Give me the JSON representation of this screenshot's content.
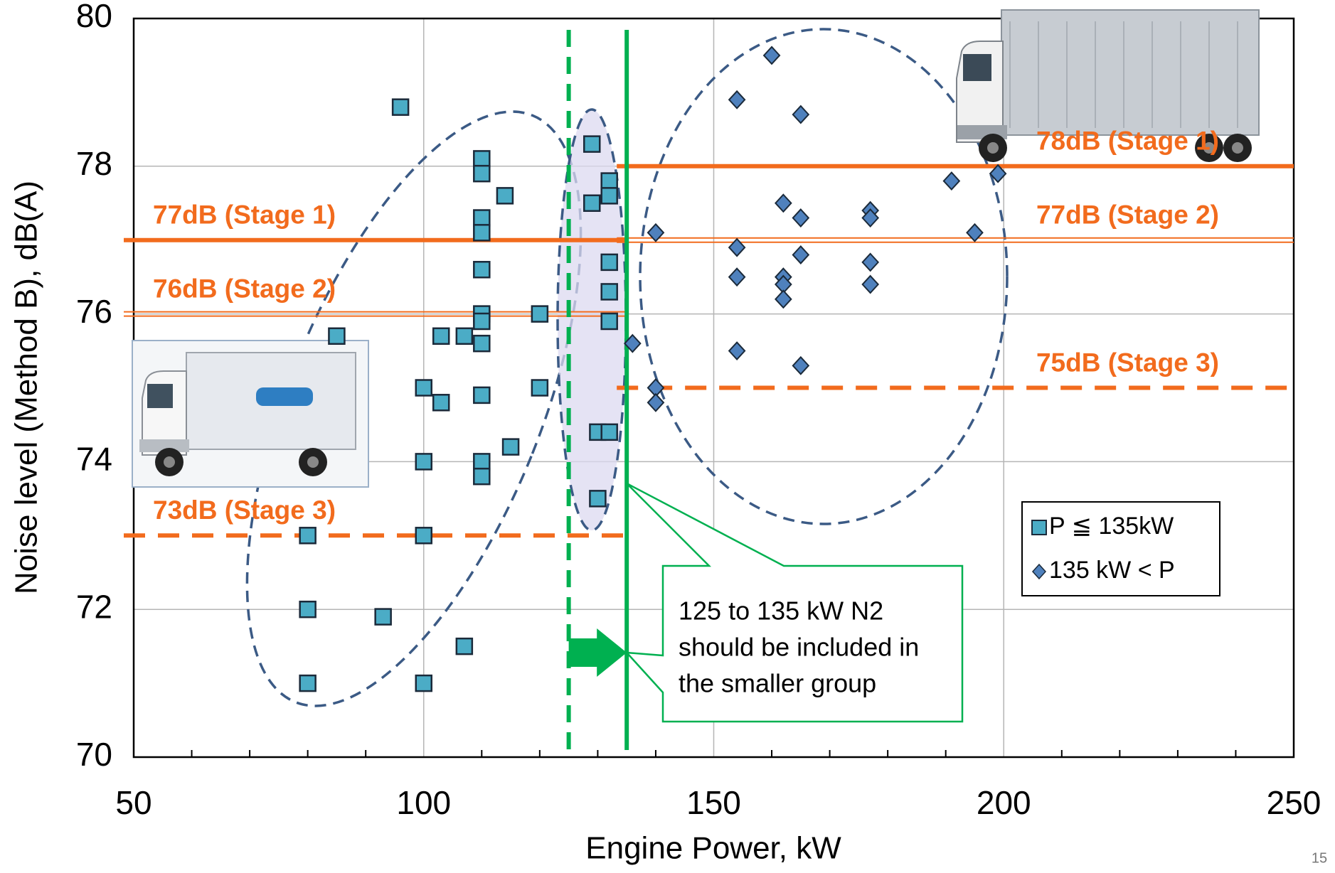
{
  "chart_data": {
    "type": "scatter",
    "x_label": "Engine Power, kW",
    "y_label": "Noise level (Method B), dB(A)",
    "xlim": [
      50,
      250
    ],
    "ylim": [
      70,
      80
    ],
    "xticks": [
      50,
      100,
      150,
      200,
      250
    ],
    "xminorticks": [
      60,
      70,
      80,
      90,
      110,
      120,
      130,
      140,
      160,
      170,
      180,
      190,
      210,
      220,
      230,
      240
    ],
    "yticks": [
      70,
      72,
      74,
      76,
      78,
      80
    ],
    "grid": true,
    "legend": "lower right",
    "series": [
      {
        "name": "P ≦ 135kW",
        "marker": "square",
        "color": "#4bacc6",
        "x": [
          80,
          80,
          80,
          85,
          93,
          96,
          100,
          100,
          100,
          100,
          103,
          103,
          107,
          107,
          110,
          110,
          110,
          110,
          110,
          110,
          110,
          110,
          110,
          110,
          110,
          114,
          115,
          120,
          120,
          129,
          129,
          130,
          130,
          132,
          132,
          132,
          132,
          132,
          132
        ],
        "values": [
          73.0,
          72.0,
          71.0,
          75.7,
          71.9,
          78.8,
          75.0,
          74.0,
          73.0,
          71.0,
          74.8,
          75.7,
          75.7,
          71.5,
          78.1,
          77.9,
          77.3,
          77.1,
          76.6,
          76.0,
          75.9,
          75.6,
          74.9,
          74.0,
          73.8,
          77.6,
          74.2,
          76.0,
          75.0,
          78.3,
          77.5,
          74.4,
          73.5,
          77.8,
          77.6,
          76.7,
          76.3,
          75.9,
          74.4
        ]
      },
      {
        "name": "135 kW < P",
        "marker": "diamond",
        "color": "#4f81bd",
        "x": [
          136,
          140,
          140,
          140,
          154,
          154,
          154,
          154,
          160,
          162,
          162,
          162,
          162,
          165,
          165,
          165,
          165,
          177,
          177,
          177,
          177,
          191,
          195,
          199
        ],
        "values": [
          75.6,
          77.1,
          75.0,
          74.8,
          78.9,
          76.9,
          76.5,
          75.5,
          79.5,
          77.5,
          76.5,
          76.4,
          76.2,
          78.7,
          77.3,
          76.8,
          75.3,
          77.4,
          77.3,
          76.7,
          76.4,
          77.8,
          77.1,
          77.9
        ]
      }
    ],
    "threshold_color": "#f26b1d",
    "thresholds": [
      {
        "label": "77dB (Stage 1)",
        "value": 77,
        "x_range": [
          50,
          135
        ],
        "style": "solid"
      },
      {
        "label": "76dB (Stage 2)",
        "value": 76,
        "x_range": [
          50,
          135
        ],
        "style": "double"
      },
      {
        "label": "73dB (Stage 3)",
        "value": 73,
        "x_range": [
          50,
          135
        ],
        "style": "dashed"
      },
      {
        "label": "78dB (Stage 1)",
        "value": 78,
        "x_range": [
          135,
          250
        ],
        "style": "solid"
      },
      {
        "label": "77dB (Stage 2)",
        "value": 77,
        "x_range": [
          135,
          250
        ],
        "style": "double"
      },
      {
        "label": "75dB (Stage 3)",
        "value": 75,
        "x_range": [
          135,
          250
        ],
        "style": "dashed"
      }
    ],
    "vertical_color": "#00b050",
    "vertical_lines": [
      {
        "value": 125,
        "style": "dashed"
      },
      {
        "value": 135,
        "style": "solid"
      }
    ],
    "callout": {
      "lines": [
        "125 to 135 kW N2",
        "should be included in",
        "the smaller group"
      ]
    }
  },
  "page_number": "15"
}
